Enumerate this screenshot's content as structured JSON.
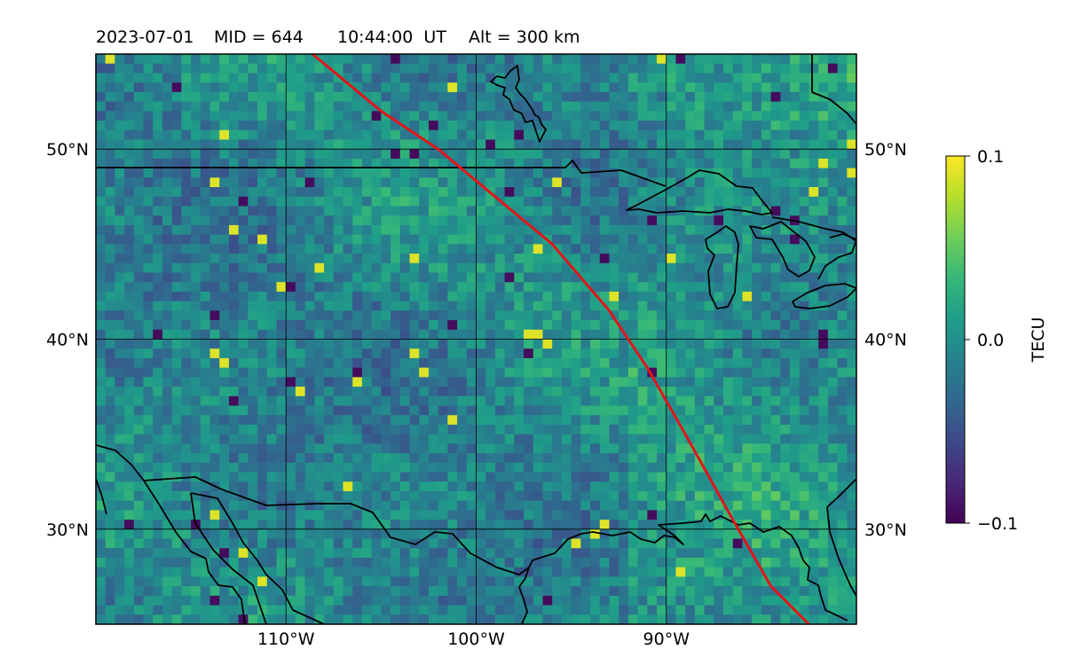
{
  "title": {
    "date": "2023-07-01",
    "mid": "MID = 644",
    "time": "10:44:00  UT",
    "alt": "Alt = 300 km"
  },
  "map": {
    "projection": "plate-carree",
    "lon_range": [
      -120,
      -80
    ],
    "lat_range": [
      25,
      55
    ],
    "lon_ticks": [
      {
        "value": -110,
        "label": "110°W"
      },
      {
        "value": -100,
        "label": "100°W"
      },
      {
        "value": -90,
        "label": "90°W"
      }
    ],
    "lat_ticks": [
      {
        "value": 50,
        "label": "50°N"
      },
      {
        "value": 40,
        "label": "40°N"
      },
      {
        "value": 30,
        "label": "30°N"
      }
    ],
    "grid": true,
    "coastlines": true,
    "borders": true
  },
  "chart_data": {
    "type": "heatmap",
    "variable": "TECU",
    "colormap": "viridis",
    "vmin": -0.1,
    "vmax": 0.1,
    "grid_resolution_deg": 0.5,
    "overlay_track": {
      "color": "#e3141a",
      "points": [
        [
          -108.6,
          55.0
        ],
        [
          -105.0,
          52.0
        ],
        [
          -102.0,
          50.0
        ],
        [
          -99.0,
          47.5
        ],
        [
          -96.0,
          45.0
        ],
        [
          -93.0,
          41.5
        ],
        [
          -91.0,
          38.5
        ],
        [
          -89.0,
          35.0
        ],
        [
          -86.5,
          30.5
        ],
        [
          -84.5,
          27.0
        ],
        [
          -82.5,
          25.0
        ]
      ]
    }
  },
  "colorbar": {
    "label": "TECU",
    "ticks": [
      {
        "value": 0.1,
        "label": "0.1"
      },
      {
        "value": 0.0,
        "label": "0.0"
      },
      {
        "value": -0.1,
        "label": "−0.1"
      }
    ],
    "colors": [
      "#440154",
      "#482878",
      "#3e4989",
      "#31688e",
      "#26828e",
      "#1f9e89",
      "#35b779",
      "#6ece58",
      "#b5de2b",
      "#fde725"
    ]
  }
}
